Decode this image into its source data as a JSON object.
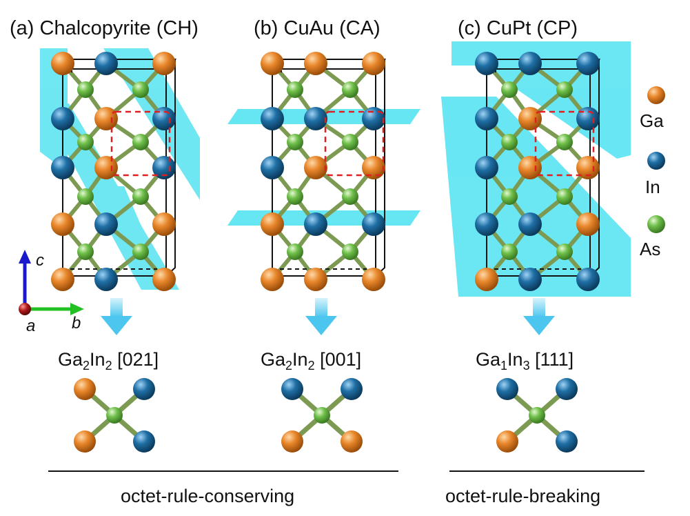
{
  "panels": [
    {
      "title": "(a) Chalcopyrite (CH)",
      "formula_base": "Ga",
      "formula_sub1": "2",
      "formula_mid": "In",
      "formula_sub2": "2",
      "formula_dir": " [021]",
      "motif": [
        "Ga",
        "In",
        "Ga",
        "In"
      ]
    },
    {
      "title": "(b) CuAu (CA)",
      "formula_base": "Ga",
      "formula_sub1": "2",
      "formula_mid": "In",
      "formula_sub2": "2",
      "formula_dir": " [001]",
      "motif": [
        "In",
        "In",
        "Ga",
        "Ga"
      ]
    },
    {
      "title": "(c) CuPt (CP)",
      "formula_base": "Ga",
      "formula_sub1": "1",
      "formula_mid": "In",
      "formula_sub2": "3",
      "formula_dir": " [111]",
      "motif": [
        "In",
        "In",
        "Ga",
        "In"
      ]
    }
  ],
  "legend": [
    {
      "label": "Ga",
      "color": "#e8862a"
    },
    {
      "label": "In",
      "color": "#1f6fa5"
    },
    {
      "label": "As",
      "color": "#6fbf4a"
    }
  ],
  "axes": {
    "c": "c",
    "a": "a",
    "b": "b"
  },
  "captions": {
    "conserving": "octet-rule-conserving",
    "breaking": "octet-rule-breaking"
  },
  "colors": {
    "plane": "#40e0f0",
    "arrow": "#6fd4f2",
    "bond": "#8a9a55",
    "cell": "#111111",
    "square": "#e02020"
  }
}
